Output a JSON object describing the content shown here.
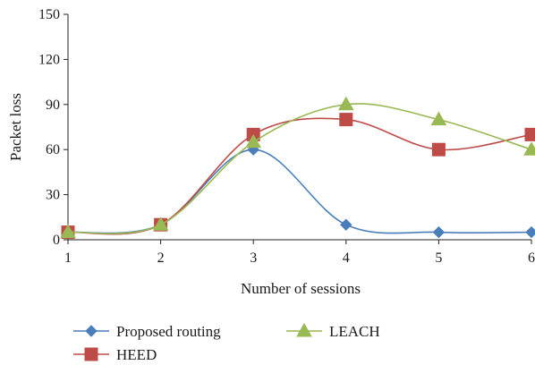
{
  "chart_data": {
    "type": "line",
    "title": "",
    "xlabel": "Number of sessions",
    "ylabel": "Packet loss",
    "x": [
      1,
      2,
      3,
      4,
      5,
      6
    ],
    "xlim": [
      1,
      6
    ],
    "ylim": [
      0,
      150
    ],
    "yticks": [
      0,
      30,
      60,
      90,
      120,
      150
    ],
    "grid": false,
    "smoothed": true,
    "legend_position": "bottom",
    "series": [
      {
        "name": "Proposed routing",
        "values": [
          5,
          10,
          60,
          10,
          5,
          5
        ],
        "color": "#4a7ebb",
        "marker": "diamond"
      },
      {
        "name": "HEED",
        "values": [
          5,
          10,
          70,
          80,
          60,
          70
        ],
        "color": "#be4b48",
        "marker": "square"
      },
      {
        "name": "LEACH",
        "values": [
          5,
          10,
          65,
          90,
          80,
          60
        ],
        "color": "#98b954",
        "marker": "triangle"
      }
    ]
  }
}
